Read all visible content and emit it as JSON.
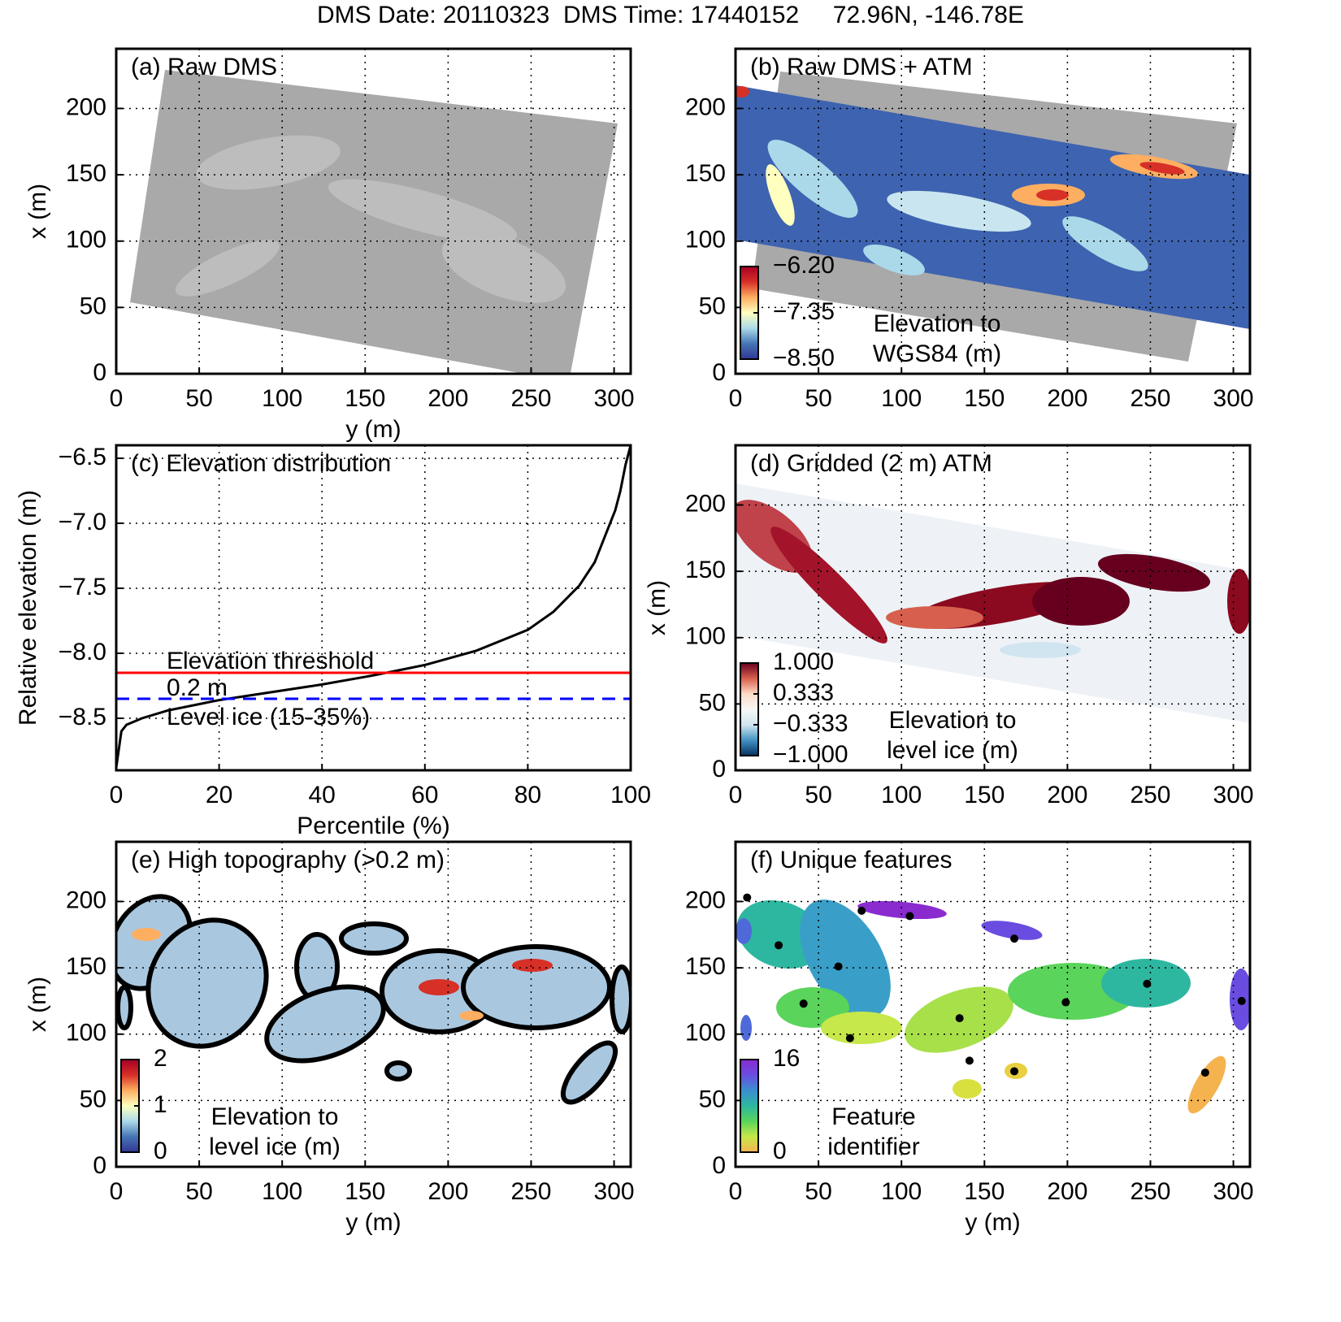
{
  "title": "DMS Date: 20110323  DMS Time: 17440152     72.96N, -146.78E",
  "chart_data": [
    {
      "type": "image",
      "label": "(a) Raw DMS",
      "xlabel": "y (m)",
      "ylabel": "x (m)",
      "xlim": [
        0,
        310
      ],
      "ylim": [
        0,
        245
      ],
      "xticks": [
        0,
        50,
        100,
        150,
        200,
        250,
        300
      ],
      "yticks": [
        0,
        50,
        100,
        150,
        200
      ],
      "grid": true
    },
    {
      "type": "image",
      "label": "(b) Raw DMS + ATM",
      "xlim": [
        0,
        310
      ],
      "ylim": [
        0,
        245
      ],
      "xticks": [
        0,
        50,
        100,
        150,
        200,
        250,
        300
      ],
      "yticks": [
        0,
        50,
        100,
        150,
        200
      ],
      "grid": true,
      "colorbar": {
        "vlim": [
          -8.5,
          -6.2
        ],
        "colors": [
          "#313695",
          "#4575b4",
          "#abd9e9",
          "#ffffbf",
          "#fdae61",
          "#d73027",
          "#a50026"
        ],
        "ticks": [
          {
            "value": -6.2,
            "label": "−6.20"
          },
          {
            "value": -7.35,
            "label": "−7.35"
          },
          {
            "value": -8.5,
            "label": "−8.50"
          }
        ],
        "label": [
          "Elevation to",
          "WGS84 (m)"
        ]
      }
    },
    {
      "type": "line",
      "label": "(c) Elevation distribution",
      "xlabel": "Percentile (%)",
      "ylabel": "Relative elevation (m)",
      "xlim": [
        0,
        100
      ],
      "ylim": [
        -8.9,
        -6.4
      ],
      "xticks": [
        0,
        20,
        40,
        60,
        80,
        100
      ],
      "yticks": [
        {
          "value": -8.5,
          "label": "−8.5"
        },
        {
          "value": -8.0,
          "label": "−8.0"
        },
        {
          "value": -7.5,
          "label": "−7.5"
        },
        {
          "value": -7.0,
          "label": "−7.0"
        },
        {
          "value": -6.5,
          "label": "−6.5"
        }
      ],
      "grid": true,
      "x": [
        0,
        1,
        2,
        5,
        10,
        20,
        30,
        40,
        50,
        60,
        70,
        80,
        85,
        90,
        93,
        95,
        97,
        98,
        99,
        100
      ],
      "series": [
        {
          "color": "#000000",
          "values": [
            -8.88,
            -8.6,
            -8.55,
            -8.5,
            -8.44,
            -8.36,
            -8.3,
            -8.24,
            -8.17,
            -8.09,
            -7.98,
            -7.82,
            -7.68,
            -7.48,
            -7.3,
            -7.1,
            -6.9,
            -6.75,
            -6.55,
            -6.4
          ]
        }
      ],
      "hlines": [
        {
          "value": -8.15,
          "color": "#ff0000",
          "dashed": false
        },
        {
          "value": -8.35,
          "color": "#0000ff",
          "dashed": true
        }
      ],
      "annotations": [
        {
          "text": "Elevation threshold",
          "color": "#ff0000"
        },
        {
          "text": "0.2 m",
          "color": "#000000"
        },
        {
          "text": "Level ice (15-35%)",
          "color": "#0000ff"
        }
      ]
    },
    {
      "type": "heatmap",
      "label": "(d) Gridded (2 m) ATM",
      "ylabel": "x (m)",
      "xlim": [
        0,
        310
      ],
      "ylim": [
        0,
        245
      ],
      "xticks": [
        0,
        50,
        100,
        150,
        200,
        250,
        300
      ],
      "yticks": [
        0,
        50,
        100,
        150,
        200
      ],
      "grid": true,
      "colorbar": {
        "vlim": [
          -1,
          1
        ],
        "colors": [
          "#053061",
          "#4393c3",
          "#d1e5f0",
          "#f7f7f7",
          "#fddbc7",
          "#d6604d",
          "#67001f"
        ],
        "ticks": [
          {
            "value": 1,
            "label": "1.000"
          },
          {
            "value": 0.333,
            "label": "0.333"
          },
          {
            "value": -0.333,
            "label": "−0.333"
          },
          {
            "value": -1,
            "label": "−1.000"
          }
        ],
        "label": [
          "Elevation to",
          "level ice (m)"
        ]
      }
    },
    {
      "type": "heatmap",
      "label": "(e) High topography (>0.2 m)",
      "xlabel": "y (m)",
      "ylabel": "x (m)",
      "xlim": [
        0,
        310
      ],
      "ylim": [
        0,
        245
      ],
      "xticks": [
        0,
        50,
        100,
        150,
        200,
        250,
        300
      ],
      "yticks": [
        0,
        50,
        100,
        150,
        200
      ],
      "grid": true,
      "colorbar": {
        "vlim": [
          0,
          2
        ],
        "colors": [
          "#313695",
          "#4575b4",
          "#abd9e9",
          "#ffffbf",
          "#fdae61",
          "#d73027",
          "#a50026"
        ],
        "ticks": [
          2,
          1,
          0
        ],
        "label": [
          "Elevation to",
          "level ice (m)"
        ]
      }
    },
    {
      "type": "scatter",
      "label": "(f) Unique features",
      "xlabel": "y (m)",
      "xlim": [
        0,
        310
      ],
      "ylim": [
        0,
        245
      ],
      "xticks": [
        0,
        50,
        100,
        150,
        200,
        250,
        300
      ],
      "yticks": [
        0,
        50,
        100,
        150,
        200
      ],
      "grid": true,
      "x": [
        7,
        26,
        62,
        41,
        69,
        76,
        105,
        168,
        135,
        141,
        168,
        199,
        248,
        283,
        305
      ],
      "values": [
        203,
        167,
        151,
        123,
        97,
        193,
        189,
        172,
        112,
        80,
        72,
        124,
        138,
        71,
        125
      ],
      "color": "#000000",
      "colorbar": {
        "vlim": [
          0,
          16
        ],
        "colors": [
          "#f4b34f",
          "#c6e84a",
          "#5ad45a",
          "#2eb7a0",
          "#3a8fd0",
          "#6a4de0",
          "#8a2bd0"
        ],
        "ticks": [
          16,
          0
        ],
        "label": [
          "Feature",
          "identifier"
        ]
      }
    }
  ]
}
